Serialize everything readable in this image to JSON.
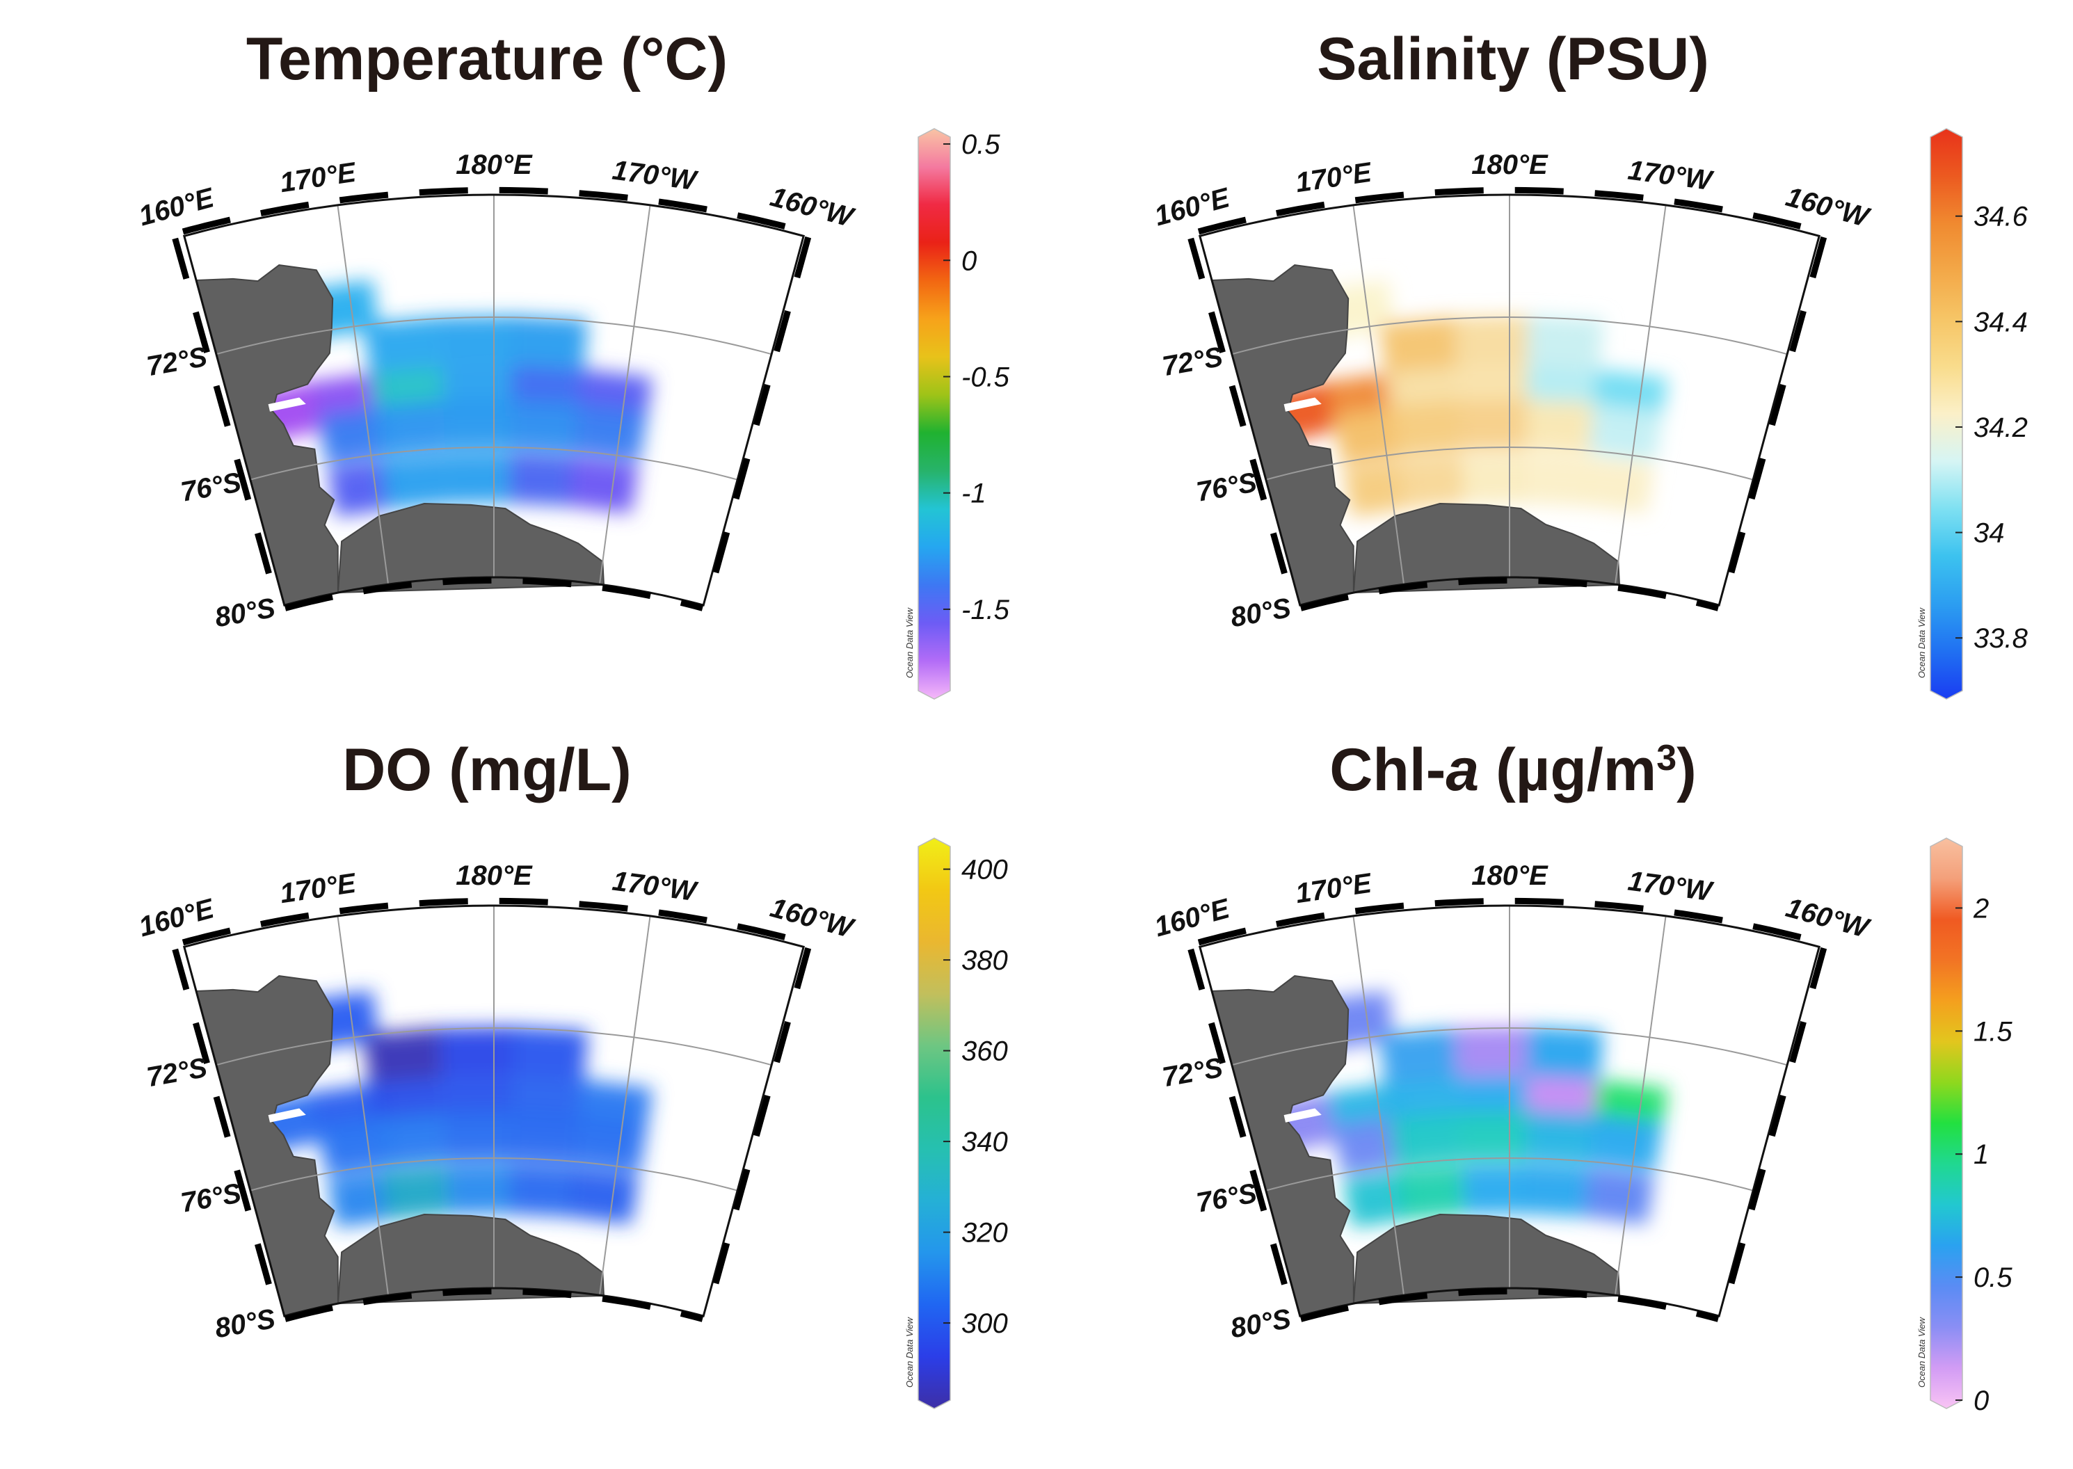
{
  "watermark": "Ocean Data View",
  "longitude_labels": [
    "160°E",
    "170°E",
    "180°E",
    "170°W",
    "160°W"
  ],
  "latitude_labels": [
    "72°S",
    "76°S",
    "80°S"
  ],
  "colors": {
    "land": "#606060",
    "grid": "#9a9a9a",
    "frame": "#111111"
  },
  "panels": [
    {
      "id": "temperature",
      "title": "Temperature (°C)",
      "colorbar": {
        "ticks": [
          "0.5",
          "0",
          "-0.5",
          "-1",
          "-1.5"
        ],
        "tick_values": [
          0.5,
          0,
          -0.5,
          -1,
          -1.5
        ],
        "min": -1.85,
        "max": 0.53,
        "gradient": [
          "#f6b8f8",
          "#b26cf7",
          "#6d5cf5",
          "#3d78f3",
          "#25a7f0",
          "#23c4d4",
          "#27b36a",
          "#20b230",
          "#9ec318",
          "#e8c21a",
          "#f7a21a",
          "#f26712",
          "#ea2217",
          "#f02a44",
          "#f47aa0",
          "#f9c4a4"
        ]
      },
      "cells": [
        {
          "c": 0,
          "r": 0,
          "color": "#2ab0ef"
        },
        {
          "c": 1,
          "r": 1,
          "color": "#2aa8f0"
        },
        {
          "c": 2,
          "r": 1,
          "color": "#2aa4f0"
        },
        {
          "c": 3,
          "r": 1,
          "color": "#2c9ef0"
        },
        {
          "c": -1,
          "r": 2,
          "color": "#a24cf2"
        },
        {
          "c": 0,
          "r": 2,
          "color": "#8a52f3"
        },
        {
          "c": 1,
          "r": 2,
          "color": "#25c2c8"
        },
        {
          "c": 2,
          "r": 2,
          "color": "#2aa2f0"
        },
        {
          "c": 3,
          "r": 2,
          "color": "#3f6cf2"
        },
        {
          "c": 4,
          "r": 2,
          "color": "#5a5ef3"
        },
        {
          "c": 0,
          "r": 3,
          "color": "#3a7cf2"
        },
        {
          "c": 1,
          "r": 3,
          "color": "#2d96f1"
        },
        {
          "c": 2,
          "r": 3,
          "color": "#2a9af0"
        },
        {
          "c": 3,
          "r": 3,
          "color": "#2f90f1"
        },
        {
          "c": 4,
          "r": 3,
          "color": "#3a7ef2"
        },
        {
          "c": 0,
          "r": 4,
          "color": "#5460f3"
        },
        {
          "c": 1,
          "r": 4,
          "color": "#2aa0f0"
        },
        {
          "c": 2,
          "r": 4,
          "color": "#2ba0f0"
        },
        {
          "c": 3,
          "r": 4,
          "color": "#4a66f2"
        },
        {
          "c": 4,
          "r": 4,
          "color": "#6c58f4"
        }
      ]
    },
    {
      "id": "salinity",
      "title": "Salinity (PSU)",
      "colorbar": {
        "ticks": [
          "34.6",
          "34.4",
          "34.2",
          "34",
          "33.8"
        ],
        "tick_values": [
          34.6,
          34.4,
          34.2,
          34,
          33.8
        ],
        "min": 33.7,
        "max": 34.75,
        "gradient": [
          "#1a3cf2",
          "#2070f2",
          "#2c9ef1",
          "#3cc2ef",
          "#7ee0f2",
          "#d6f5f4",
          "#fbf0c8",
          "#f9dc8c",
          "#f6c566",
          "#f3a848",
          "#f08a30",
          "#ec5a20",
          "#e8321a"
        ]
      },
      "cells": [
        {
          "c": 0,
          "r": 0,
          "color": "#fbf4cc"
        },
        {
          "c": 1,
          "r": 1,
          "color": "#f5c572"
        },
        {
          "c": 2,
          "r": 1,
          "color": "#f8dca0"
        },
        {
          "c": 3,
          "r": 1,
          "color": "#c8f0f2"
        },
        {
          "c": -1,
          "r": 2,
          "color": "#ec5a20"
        },
        {
          "c": 0,
          "r": 2,
          "color": "#f08a3a"
        },
        {
          "c": 1,
          "r": 2,
          "color": "#f8dfa4"
        },
        {
          "c": 2,
          "r": 2,
          "color": "#f9e2aa"
        },
        {
          "c": 3,
          "r": 2,
          "color": "#b4ecf3"
        },
        {
          "c": 4,
          "r": 2,
          "color": "#72ddf3"
        },
        {
          "c": 0,
          "r": 3,
          "color": "#f4c06a"
        },
        {
          "c": 1,
          "r": 3,
          "color": "#f6cc80"
        },
        {
          "c": 2,
          "r": 3,
          "color": "#f7d08a"
        },
        {
          "c": 3,
          "r": 3,
          "color": "#f9e7b4"
        },
        {
          "c": 4,
          "r": 3,
          "color": "#c4eff4"
        },
        {
          "c": 0,
          "r": 4,
          "color": "#f6cc80"
        },
        {
          "c": 1,
          "r": 4,
          "color": "#f8d898"
        },
        {
          "c": 2,
          "r": 4,
          "color": "#faecc0"
        },
        {
          "c": 3,
          "r": 4,
          "color": "#fbf0c8"
        },
        {
          "c": 4,
          "r": 4,
          "color": "#fbf0c8"
        }
      ]
    },
    {
      "id": "do",
      "title": "DO (mg/L)",
      "colorbar": {
        "ticks": [
          "400",
          "380",
          "360",
          "340",
          "320",
          "300"
        ],
        "tick_values": [
          400,
          380,
          360,
          340,
          320,
          300
        ],
        "min": 283,
        "max": 405,
        "gradient": [
          "#3d2fa6",
          "#2b3ee8",
          "#2066f2",
          "#2496ec",
          "#25b0d6",
          "#26c0b0",
          "#2cc28c",
          "#6ec682",
          "#c2bf5c",
          "#eab730",
          "#f2c814",
          "#f1ee18"
        ]
      },
      "cells": [
        {
          "c": 0,
          "r": 0,
          "color": "#2a5ef2"
        },
        {
          "c": 1,
          "r": 1,
          "color": "#3a36b8"
        },
        {
          "c": 2,
          "r": 1,
          "color": "#2b48e8"
        },
        {
          "c": 3,
          "r": 1,
          "color": "#2a58ee"
        },
        {
          "c": -1,
          "r": 2,
          "color": "#2b6ef2"
        },
        {
          "c": 0,
          "r": 2,
          "color": "#2b60ef"
        },
        {
          "c": 1,
          "r": 2,
          "color": "#2a4fe9"
        },
        {
          "c": 2,
          "r": 2,
          "color": "#2a56ec"
        },
        {
          "c": 3,
          "r": 2,
          "color": "#2b64f0"
        },
        {
          "c": 4,
          "r": 2,
          "color": "#2b7af2"
        },
        {
          "c": 0,
          "r": 3,
          "color": "#2b76f2"
        },
        {
          "c": 1,
          "r": 3,
          "color": "#2c7cf2"
        },
        {
          "c": 2,
          "r": 3,
          "color": "#2b70f1"
        },
        {
          "c": 3,
          "r": 3,
          "color": "#2b6cf1"
        },
        {
          "c": 4,
          "r": 3,
          "color": "#2b72f2"
        },
        {
          "c": 0,
          "r": 4,
          "color": "#2c88f0"
        },
        {
          "c": 1,
          "r": 4,
          "color": "#24a8c8"
        },
        {
          "c": 2,
          "r": 4,
          "color": "#2c8cf0"
        },
        {
          "c": 3,
          "r": 4,
          "color": "#2b6cf1"
        },
        {
          "c": 4,
          "r": 4,
          "color": "#2b62f0"
        }
      ]
    },
    {
      "id": "chla",
      "title": "Chl-a (µg/m³)",
      "title_parts": {
        "prefix": "Chl-",
        "italic": "a",
        "suffix": " (µg/m",
        "sup": "3",
        "close": ")"
      },
      "colorbar": {
        "ticks": [
          "2",
          "1.5",
          "1",
          "0.5",
          "0"
        ],
        "tick_values": [
          2,
          1.5,
          1,
          0.5,
          0
        ],
        "min": 0,
        "max": 2.25,
        "gradient": [
          "#f9c4f4",
          "#d29cf4",
          "#8a8ef4",
          "#5a8cf4",
          "#2aa2f0",
          "#22c8d0",
          "#20d890",
          "#22e040",
          "#8ed81e",
          "#e2c61e",
          "#f4a01e",
          "#f27424",
          "#f05a22",
          "#f4a07a",
          "#f8c0a0"
        ]
      },
      "cells": [
        {
          "c": 0,
          "r": 0,
          "color": "#6e86f4"
        },
        {
          "c": 1,
          "r": 1,
          "color": "#3aa2f0"
        },
        {
          "c": 2,
          "r": 1,
          "color": "#a68af4"
        },
        {
          "c": 3,
          "r": 1,
          "color": "#2aa6f0"
        },
        {
          "c": -1,
          "r": 2,
          "color": "#8a88f4"
        },
        {
          "c": 0,
          "r": 2,
          "color": "#2cb6e6"
        },
        {
          "c": 1,
          "r": 2,
          "color": "#2ab2ea"
        },
        {
          "c": 2,
          "r": 2,
          "color": "#2aacef"
        },
        {
          "c": 3,
          "r": 2,
          "color": "#c68cf4"
        },
        {
          "c": 4,
          "r": 2,
          "color": "#22e070"
        },
        {
          "c": 0,
          "r": 3,
          "color": "#6e8af4"
        },
        {
          "c": 1,
          "r": 3,
          "color": "#22c8c8"
        },
        {
          "c": 2,
          "r": 3,
          "color": "#22ccc0"
        },
        {
          "c": 3,
          "r": 3,
          "color": "#28b6e4"
        },
        {
          "c": 4,
          "r": 3,
          "color": "#2aaaf0"
        },
        {
          "c": 0,
          "r": 4,
          "color": "#26c4d4"
        },
        {
          "c": 1,
          "r": 4,
          "color": "#24d2b0"
        },
        {
          "c": 2,
          "r": 4,
          "color": "#2aacef"
        },
        {
          "c": 3,
          "r": 4,
          "color": "#2aa8f0"
        },
        {
          "c": 4,
          "r": 4,
          "color": "#6086f4"
        }
      ]
    }
  ]
}
